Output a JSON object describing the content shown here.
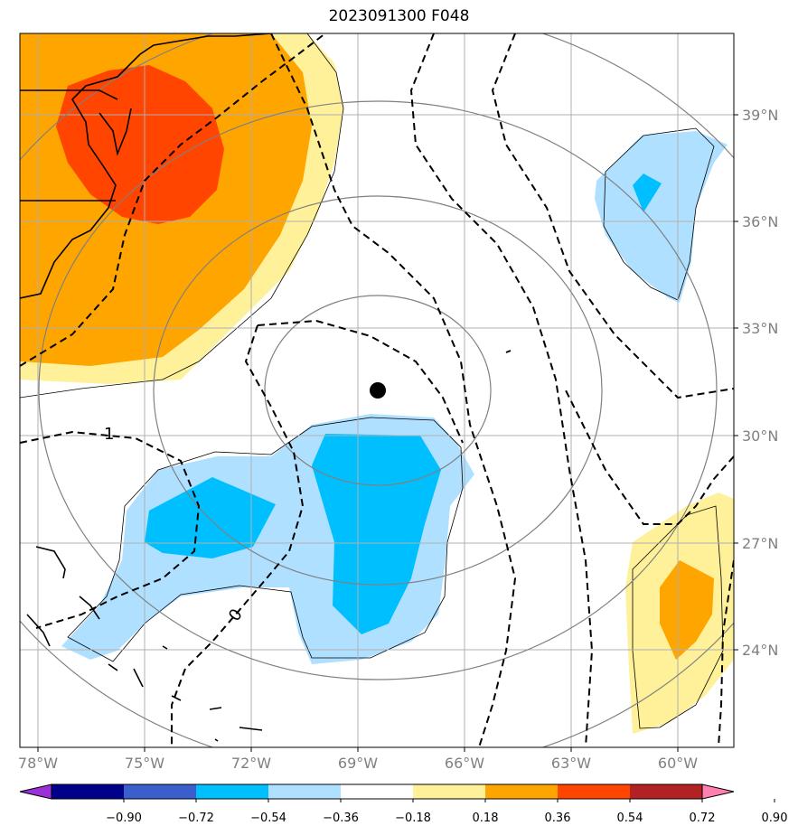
{
  "title": "2023091300 F048",
  "map": {
    "lon_labels": [
      "78°W",
      "75°W",
      "72°W",
      "69°W",
      "66°W",
      "63°W",
      "60°W"
    ],
    "lat_labels": [
      "39°N",
      "36°N",
      "33°N",
      "30°N",
      "27°N",
      "24°N"
    ],
    "contour_labels": [
      "1",
      "0"
    ],
    "center_marker": "storm-center-dot"
  },
  "colorbar": {
    "ticks": [
      "−0.90",
      "−0.72",
      "−0.54",
      "−0.36",
      "−0.18",
      "0.18",
      "0.36",
      "0.54",
      "0.72",
      "0.90"
    ],
    "colors": [
      "#9b30d9",
      "#00008b",
      "#3a5fcd",
      "#00bfff",
      "#b0e0ff",
      "#ffffff",
      "#fff09a",
      "#ffa500",
      "#ff4500",
      "#b22222",
      "#ff80b0"
    ]
  },
  "palette": {
    "orange": "#ffa500",
    "red_orange": "#ff4500",
    "light_yellow": "#fff09a",
    "light_blue": "#b0e0ff",
    "deep_sky_blue": "#00bfff"
  }
}
